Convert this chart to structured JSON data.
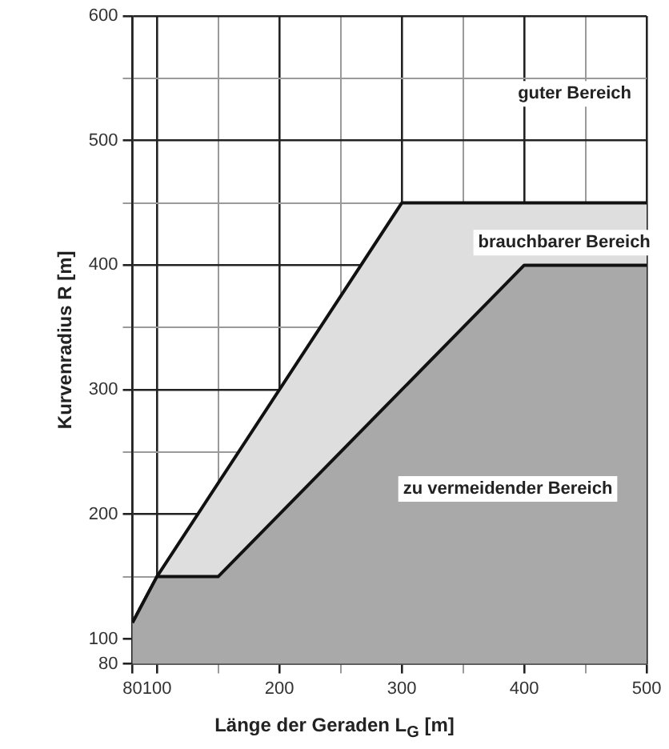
{
  "chart_data": {
    "type": "area",
    "xlabel": "Länge der Geraden L$_{G}$ [m]",
    "ylabel": "Kurvenradius R [m]",
    "xlim": [
      80,
      500
    ],
    "ylim": [
      80,
      600
    ],
    "xticks": [
      80,
      100,
      {
        "value": 150,
        "label": null
      },
      200,
      {
        "value": 250,
        "label": null
      },
      300,
      {
        "value": 350,
        "label": null
      },
      400,
      {
        "value": 450,
        "label": null
      },
      500
    ],
    "yticks": [
      80,
      100,
      {
        "value": 150,
        "label": null
      },
      200,
      {
        "value": 250,
        "label": null
      },
      300,
      {
        "value": 350,
        "label": null
      },
      400,
      {
        "value": 450,
        "label": null
      },
      500,
      {
        "value": 550,
        "label": null
      },
      600
    ],
    "grid": true,
    "legend": false,
    "series": [
      {
        "color": "#a9a9a9",
        "x": [
          80,
          100,
          150,
          400,
          500
        ],
        "values": [
          113,
          150,
          150,
          400,
          400
        ]
      },
      {
        "color": "#dedede",
        "x": [
          80,
          100,
          300,
          500
        ],
        "values": [
          113,
          150,
          450,
          450
        ]
      }
    ],
    "annotations": [
      "guter Bereich",
      "brauchbarer Bereich",
      "zu vermeidender Bereich"
    ]
  }
}
